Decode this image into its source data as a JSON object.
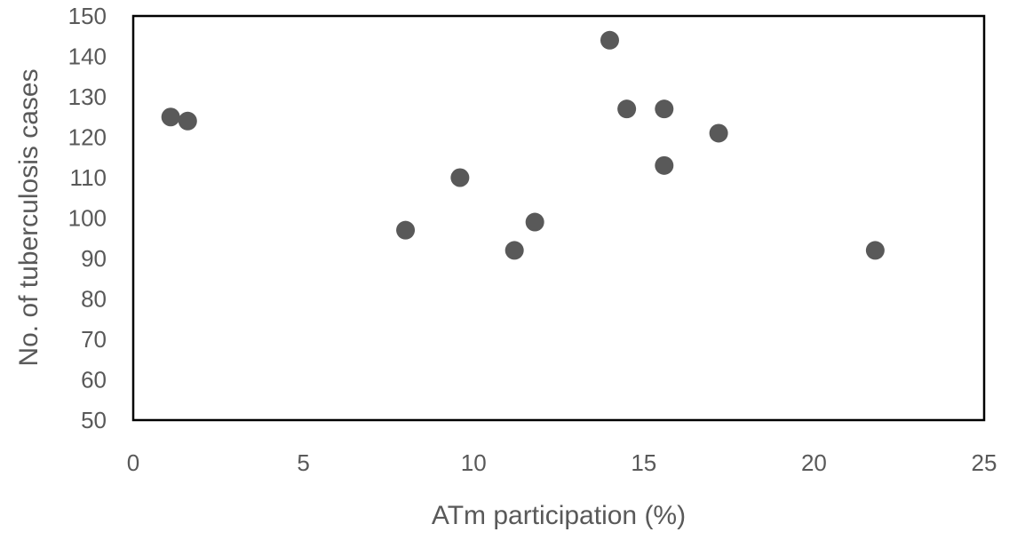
{
  "chart_data": {
    "type": "scatter",
    "title": "",
    "xlabel": "ATm participation (%)",
    "ylabel": "No. of tuberculosis cases",
    "xlim": [
      0,
      25
    ],
    "ylim": [
      50,
      150
    ],
    "x_ticks": [
      0,
      5,
      10,
      15,
      20,
      25
    ],
    "y_ticks": [
      50,
      60,
      70,
      80,
      90,
      100,
      110,
      120,
      130,
      140,
      150
    ],
    "grid": false,
    "legend": "none",
    "marker_color": "#595959",
    "series": [
      {
        "points": [
          {
            "x": 1.1,
            "y": 125
          },
          {
            "x": 1.6,
            "y": 124
          },
          {
            "x": 8.0,
            "y": 97
          },
          {
            "x": 9.6,
            "y": 110
          },
          {
            "x": 11.2,
            "y": 92
          },
          {
            "x": 11.8,
            "y": 99
          },
          {
            "x": 14.0,
            "y": 144
          },
          {
            "x": 14.5,
            "y": 127
          },
          {
            "x": 15.6,
            "y": 127
          },
          {
            "x": 15.6,
            "y": 113
          },
          {
            "x": 17.2,
            "y": 121
          },
          {
            "x": 21.8,
            "y": 92
          }
        ]
      }
    ]
  }
}
